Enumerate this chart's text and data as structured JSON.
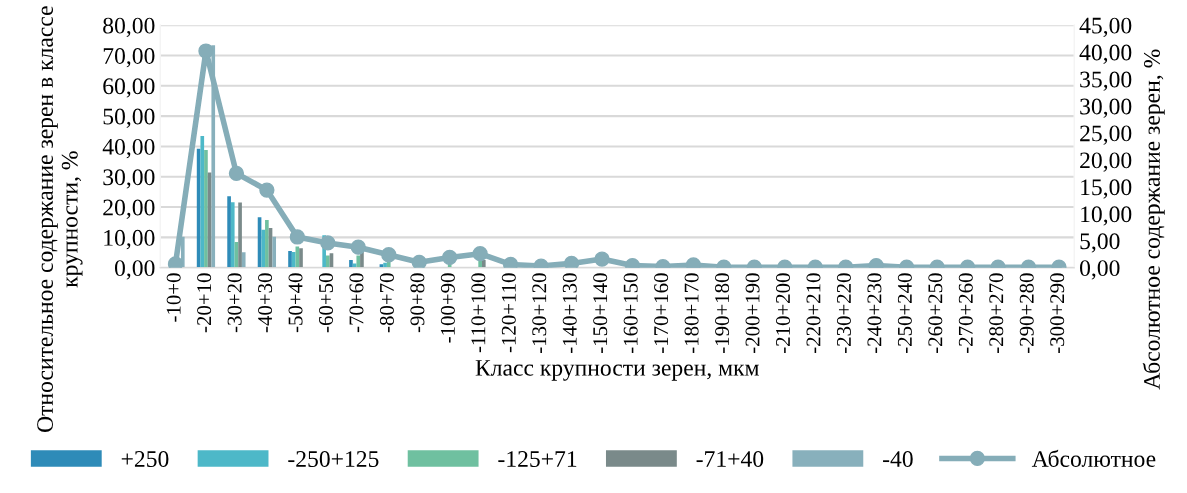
{
  "chart_data": {
    "type": "bar",
    "xlabel": "Класс крупности зерен, мкм",
    "ylabel": "Относительное содержание зерен в классе крупности, %",
    "y2label": "Абсолютное содержание зерен, %",
    "categories": [
      "-10+0",
      "-20+10",
      "-30+20",
      "-40+30",
      "-50+40",
      "-60+50",
      "-70+60",
      "-80+70",
      "-90+80",
      "-100+90",
      "-110+100",
      "-120+110",
      "-130+120",
      "-140+130",
      "-150+140",
      "-160+150",
      "-170+160",
      "-180+170",
      "-190+180",
      "-200+190",
      "-210+200",
      "-220+210",
      "-230+220",
      "-240+230",
      "-250+240",
      "-260+250",
      "-270+260",
      "-280+270",
      "-290+280",
      "-300+290"
    ],
    "series": [
      {
        "name": "+250",
        "color": "#2e8bb8",
        "values": [
          0,
          39.2,
          23.6,
          16.6,
          5.5,
          0,
          2.5,
          1.1,
          null,
          0,
          0,
          0,
          0,
          0,
          0,
          0,
          0,
          0,
          0,
          0,
          0,
          0,
          0,
          0,
          0,
          0,
          0,
          0,
          0,
          0
        ]
      },
      {
        "name": "-250+125",
        "color": "#4db8c8",
        "values": [
          0,
          43.4,
          21.6,
          12.5,
          5.2,
          10.7,
          1.4,
          1.6,
          0,
          0,
          0,
          0,
          0,
          0,
          0,
          0,
          0,
          0,
          0,
          0,
          0,
          0,
          0,
          0,
          0,
          0,
          0,
          0,
          0,
          0
        ]
      },
      {
        "name": "-125+71",
        "color": "#6fc0a0",
        "values": [
          0,
          38.8,
          8.5,
          15.7,
          7.0,
          4.0,
          4.0,
          2.5,
          null,
          1.2,
          2.5,
          0,
          0,
          0,
          0,
          0,
          0,
          0,
          0,
          0,
          0,
          0,
          0,
          0,
          0,
          0,
          0,
          0,
          0,
          0
        ]
      },
      {
        "name": "-71+40",
        "color": "#7a8a8a",
        "values": [
          0,
          31.4,
          21.5,
          13.1,
          6.4,
          4.8,
          5.8,
          null,
          null,
          null,
          2.5,
          0,
          0,
          0,
          null,
          0,
          0,
          0,
          0,
          0,
          0,
          0,
          0,
          0,
          0,
          0,
          0,
          0,
          0,
          0
        ]
      },
      {
        "name": "-40",
        "color": "#88b0bc",
        "values": [
          10.2,
          73.4,
          5.1,
          10.2,
          null,
          null,
          null,
          null,
          null,
          null,
          null,
          0,
          0,
          0,
          0,
          0,
          0,
          0,
          0,
          0,
          0,
          0,
          0,
          0,
          0,
          0,
          0,
          0,
          0,
          0
        ]
      },
      {
        "name": "Абсолютное",
        "type": "line",
        "axis": "y2",
        "color": "#85adb8",
        "values": [
          0.7,
          40.2,
          17.5,
          14.4,
          5.7,
          4.6,
          3.8,
          2.4,
          1.0,
          1.9,
          2.6,
          0.6,
          0.3,
          0.8,
          1.6,
          0.4,
          0.2,
          0.5,
          0.1,
          0.1,
          0.1,
          0.1,
          0.1,
          0.4,
          0.1,
          0.1,
          0.1,
          0.1,
          0.1,
          0.1
        ]
      }
    ],
    "marker": "circle",
    "grid": "y",
    "legend": "bottom",
    "ylim": [
      0,
      80
    ],
    "yticks": [
      {
        "value": 0,
        "label": "0,00"
      },
      {
        "value": 10,
        "label": "10,00"
      },
      {
        "value": 20,
        "label": "20,00"
      },
      {
        "value": 30,
        "label": "30,00"
      },
      {
        "value": 40,
        "label": "40,00"
      },
      {
        "value": 50,
        "label": "50,00"
      },
      {
        "value": 60,
        "label": "60,00"
      },
      {
        "value": 70,
        "label": "70,00"
      },
      {
        "value": 80,
        "label": "80,00"
      }
    ],
    "y2lim": [
      0,
      45
    ],
    "y2ticks": [
      {
        "value": 0,
        "label": "0,00"
      },
      {
        "value": 5,
        "label": "5,00"
      },
      {
        "value": 10,
        "label": "10,00"
      },
      {
        "value": 15,
        "label": "15,00"
      },
      {
        "value": 20,
        "label": "20,00"
      },
      {
        "value": 25,
        "label": "25,00"
      },
      {
        "value": 30,
        "label": "30,00"
      },
      {
        "value": 35,
        "label": "35,00"
      },
      {
        "value": 40,
        "label": "40,00"
      },
      {
        "value": 45,
        "label": "45,00"
      }
    ]
  }
}
